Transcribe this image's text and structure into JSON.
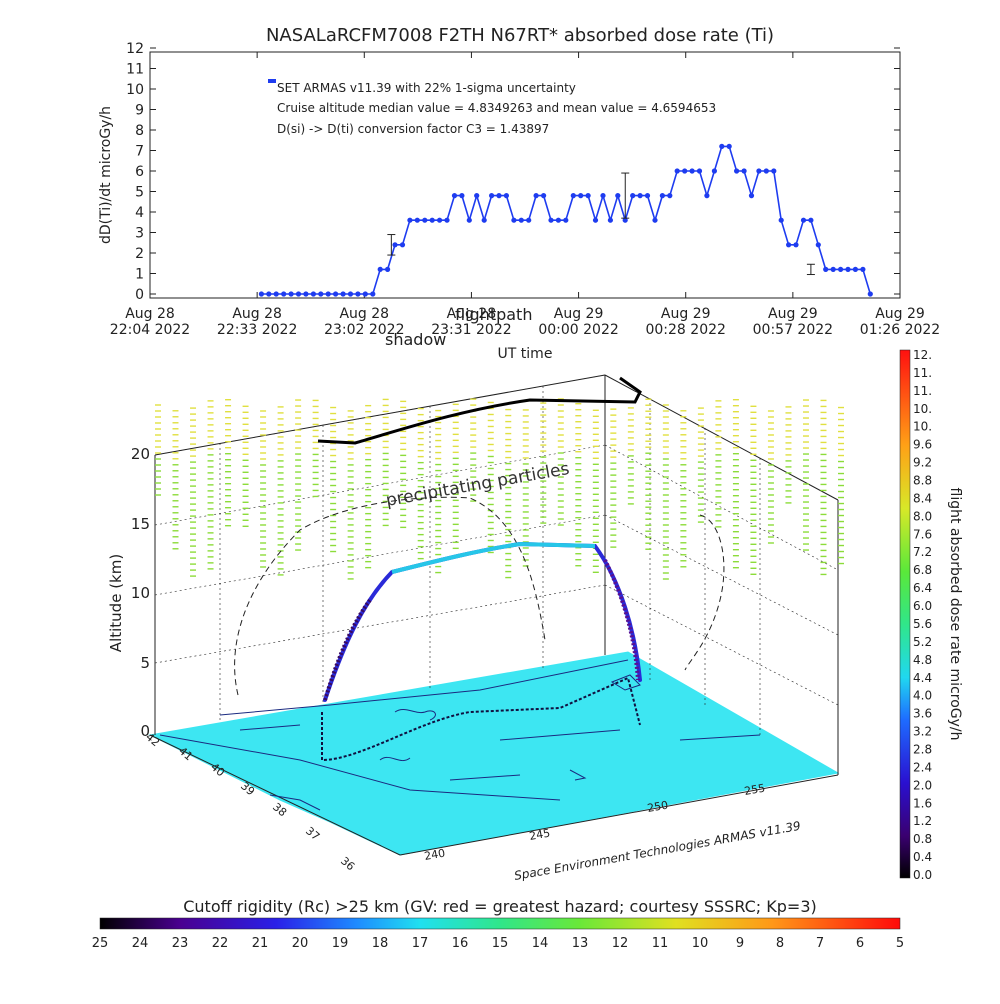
{
  "chart_data": [
    {
      "type": "scatter",
      "title": "NASALaRCFM7008  F2TH N67RT* absorbed dose rate (Ti)",
      "ylabel": "dD(Ti)/dt microGy/h",
      "xlabel": "UT time",
      "ylim": [
        0,
        12
      ],
      "yticks": [
        "0",
        "1",
        "2",
        "3",
        "4",
        "5",
        "6",
        "7",
        "8",
        "9",
        "10",
        "11",
        "12"
      ],
      "xtick_labels": [
        [
          "Aug 28",
          "22:04 2022"
        ],
        [
          "Aug 28",
          "22:33 2022"
        ],
        [
          "Aug 28",
          "23:02 2022"
        ],
        [
          "Aug 28",
          "23:31 2022"
        ],
        [
          "Aug 29",
          "00:00 2022"
        ],
        [
          "Aug 29",
          "00:28 2022"
        ],
        [
          "Aug 29",
          "00:57 2022"
        ],
        [
          "Aug 29",
          "01:26 2022"
        ]
      ],
      "xlim_minutes": [
        0,
        202
      ],
      "annotations": [
        "SET ARMAS v11.39 with 22% 1-sigma uncertainty",
        "Cruise altitude median value = 4.8349263 and mean value = 4.6594653",
        "D(si) -> D(ti) conversion factor C3 = 1.43897"
      ],
      "legend_marker_color": "#1e3cf0",
      "series_color": "#1e3cf0",
      "points_minutes": [
        30,
        32,
        34,
        36,
        38,
        40,
        42,
        44,
        46,
        48,
        50,
        52,
        54,
        56,
        58,
        60,
        62,
        64,
        66,
        68,
        70,
        72,
        74,
        76,
        78,
        80,
        82,
        84,
        86,
        88,
        90,
        92,
        94,
        96,
        98,
        100,
        102,
        104,
        106,
        108,
        110,
        112,
        114,
        116,
        118,
        120,
        122,
        124,
        126,
        128,
        130,
        132,
        134,
        136,
        138,
        140,
        142,
        144,
        146,
        148,
        150,
        152,
        154,
        156,
        158,
        160,
        162,
        164,
        166,
        168,
        170,
        172,
        174,
        176,
        178,
        180,
        182,
        184,
        186,
        188,
        190,
        192,
        194
      ],
      "points_values": [
        0,
        0,
        0,
        0,
        0,
        0,
        0,
        0,
        0,
        0,
        0,
        0,
        0,
        0,
        0,
        0,
        1.2,
        1.2,
        2.4,
        2.4,
        3.6,
        3.6,
        3.6,
        3.6,
        3.6,
        3.6,
        4.8,
        4.8,
        3.6,
        4.8,
        3.6,
        4.8,
        4.8,
        4.8,
        3.6,
        3.6,
        3.6,
        4.8,
        4.8,
        3.6,
        3.6,
        3.6,
        4.8,
        4.8,
        4.8,
        3.6,
        4.8,
        3.6,
        4.8,
        3.6,
        4.8,
        4.8,
        4.8,
        3.6,
        4.8,
        4.8,
        6.0,
        6.0,
        6.0,
        6.0,
        4.8,
        6.0,
        7.2,
        7.2,
        6.0,
        6.0,
        4.8,
        6.0,
        6.0,
        6.0,
        3.6,
        2.4,
        2.4,
        3.6,
        3.6,
        2.4,
        1.2,
        1.2,
        1.2,
        1.2,
        1.2,
        1.2,
        0
      ],
      "error_bars": [
        {
          "x_minutes": 65,
          "value": 2.4,
          "low": 1.9,
          "high": 2.9
        },
        {
          "x_minutes": 128,
          "value": 4.8,
          "low": 3.7,
          "high": 5.9
        },
        {
          "x_minutes": 178,
          "value": 1.2,
          "low": 0.95,
          "high": 1.45
        }
      ]
    },
    {
      "type": "scatter",
      "subtype": "3d-flight-track",
      "zlabel": "Altitude (km)",
      "zlim": [
        0,
        20
      ],
      "zticks": [
        "0",
        "5",
        "10",
        "15",
        "20"
      ],
      "lat_ticks": [
        "36",
        "37",
        "38",
        "39",
        "40",
        "41",
        "42"
      ],
      "lon_ticks": [
        "240",
        "245",
        "250",
        "255"
      ],
      "labels": [
        "shadow",
        "flightpath",
        "precipitating particles"
      ],
      "credit": "Space Environment Technologies ARMAS v11.39",
      "surface_color": "#3de6f2",
      "ground_track_color": "#2a2a88",
      "flightpath_shadow_color": "#000000"
    },
    {
      "type": "heatmap",
      "subtype": "colorbar-vertical",
      "label": "flight absorbed dose rate microGy/h",
      "ticks": [
        "12.",
        "11.",
        "11.",
        "10.",
        "10.",
        "9.6",
        "9.2",
        "8.8",
        "8.4",
        "8.0",
        "7.6",
        "7.2",
        "6.8",
        "6.4",
        "6.0",
        "5.6",
        "5.2",
        "4.8",
        "4.4",
        "4.0",
        "3.6",
        "3.2",
        "2.8",
        "2.4",
        "2.0",
        "1.6",
        "1.2",
        "0.8",
        "0.4",
        "0.0"
      ]
    },
    {
      "type": "heatmap",
      "subtype": "colorbar-horizontal",
      "title": "Cutoff rigidity (Rc) >25 km (GV: red = greatest hazard; courtesy SSSRC; Kp=3)",
      "ticks": [
        "25",
        "24",
        "23",
        "22",
        "21",
        "20",
        "19",
        "18",
        "17",
        "16",
        "15",
        "14",
        "13",
        "12",
        "11",
        "10",
        "9",
        "8",
        "7",
        "6",
        "5"
      ]
    }
  ]
}
